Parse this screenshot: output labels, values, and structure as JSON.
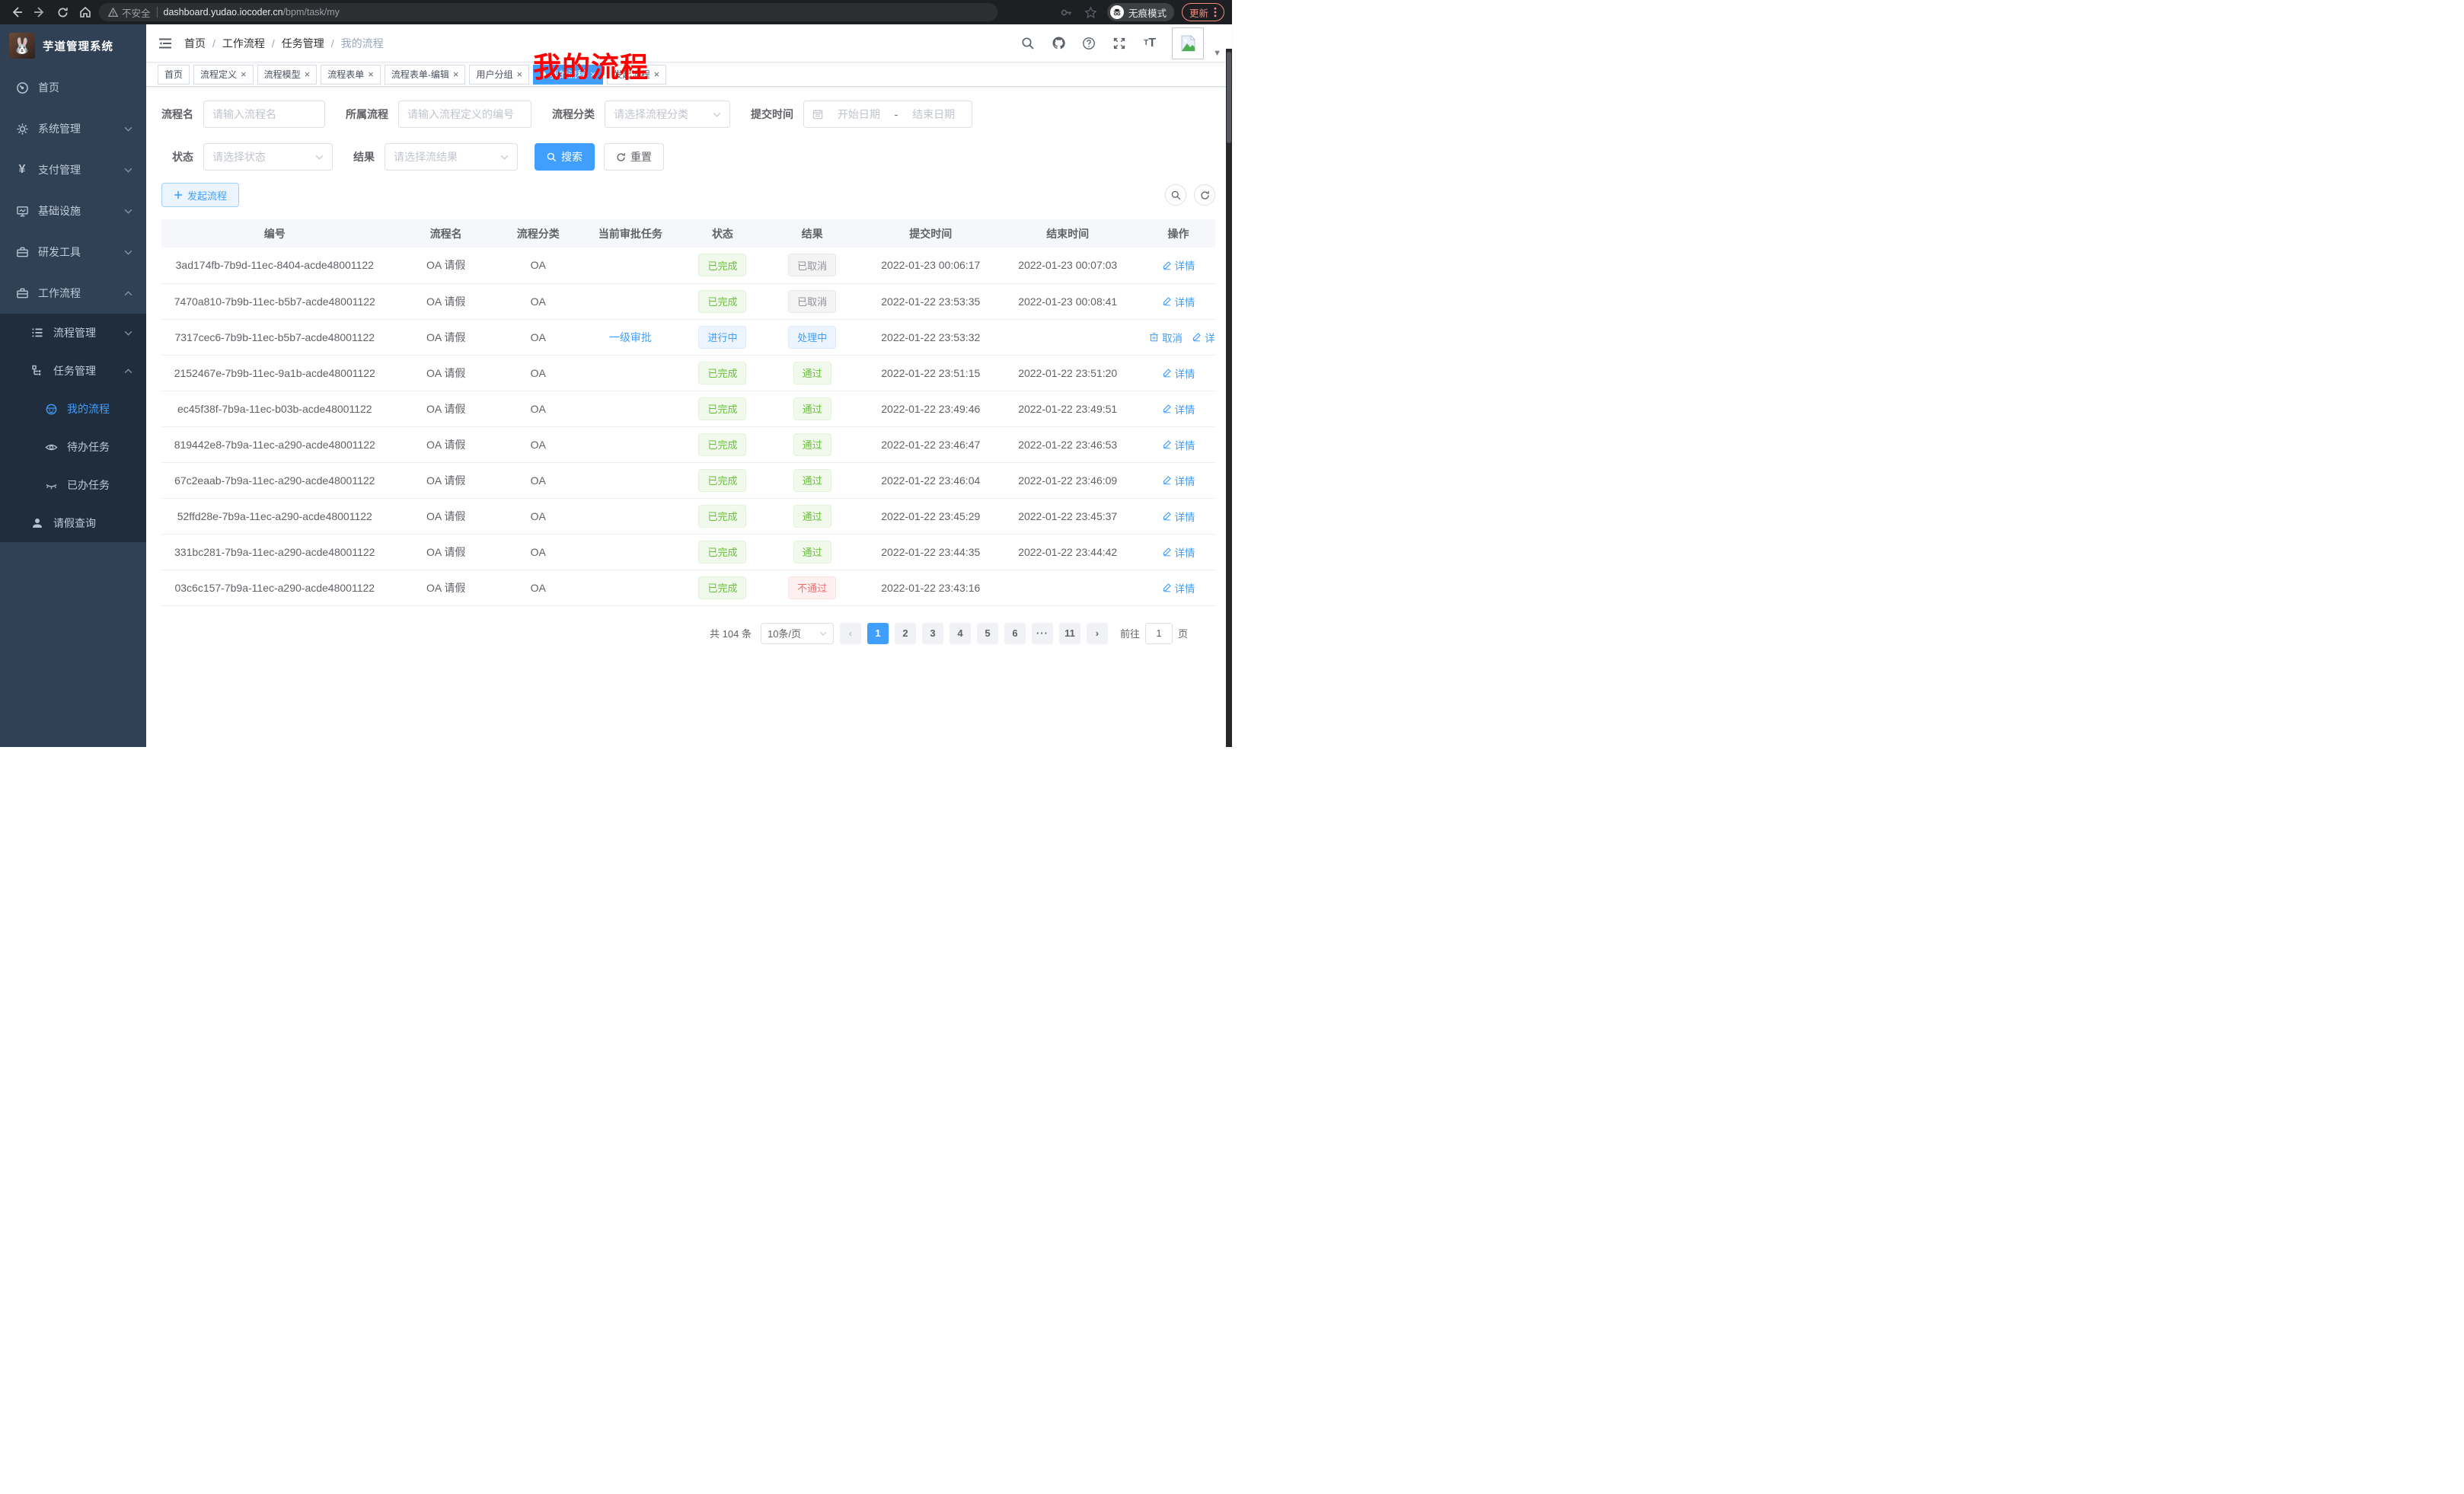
{
  "colors": {
    "accent": "#409eff",
    "success": "#67c23a",
    "danger": "#f56c6c",
    "info": "#909399",
    "annotation": "#ff0000",
    "update": "#f28b82"
  },
  "browser": {
    "security_warning": "不安全",
    "url_host": "dashboard.yudao.iocoder.cn",
    "url_path": "/bpm/task/my",
    "incognito_label": "无痕模式",
    "update_label": "更新"
  },
  "annotation": {
    "text": "我的流程"
  },
  "sidebar": {
    "title": "芋道管理系统",
    "home": "首页",
    "system": "系统管理",
    "payment": "支付管理",
    "infra": "基础设施",
    "devtools": "研发工具",
    "workflow": "工作流程",
    "process_mgmt": "流程管理",
    "task_mgmt": "任务管理",
    "my_process": "我的流程",
    "todo_tasks": "待办任务",
    "done_tasks": "已办任务",
    "leave_query": "请假查询"
  },
  "breadcrumb": {
    "items": [
      "首页",
      "工作流程",
      "任务管理",
      "我的流程"
    ]
  },
  "tabs": [
    {
      "label": "首页",
      "closable": false,
      "active": false
    },
    {
      "label": "流程定义",
      "closable": true,
      "active": false
    },
    {
      "label": "流程模型",
      "closable": true,
      "active": false
    },
    {
      "label": "流程表单",
      "closable": true,
      "active": false
    },
    {
      "label": "流程表单-编辑",
      "closable": true,
      "active": false
    },
    {
      "label": "用户分组",
      "closable": true,
      "active": false
    },
    {
      "label": "我的流程",
      "closable": true,
      "active": true
    },
    {
      "label": "发起流程",
      "closable": true,
      "active": false
    }
  ],
  "filters": {
    "name_label": "流程名",
    "name_placeholder": "请输入流程名",
    "definition_label": "所属流程",
    "definition_placeholder": "请输入流程定义的编号",
    "category_label": "流程分类",
    "category_placeholder": "请选择流程分类",
    "time_label": "提交时间",
    "date_start": "开始日期",
    "date_separator": "-",
    "date_end": "结束日期",
    "status_label": "状态",
    "status_placeholder": "请选择状态",
    "result_label": "结果",
    "result_placeholder": "请选择流结果",
    "search_button": "搜索",
    "reset_button": "重置"
  },
  "toolbar": {
    "create_button": "发起流程"
  },
  "table": {
    "columns": [
      "编号",
      "流程名",
      "流程分类",
      "当前审批任务",
      "状态",
      "结果",
      "提交时间",
      "结束时间",
      "操作"
    ],
    "rows": [
      {
        "id": "3ad174fb-7b9d-11ec-8404-acde48001122",
        "name": "OA 请假",
        "category": "OA",
        "task": "",
        "status": "已完成",
        "status_type": "success",
        "result": "已取消",
        "result_type": "info",
        "submit_time": "2022-01-23 00:06:17",
        "end_time": "2022-01-23 00:07:03",
        "actions": [
          {
            "icon": "edit",
            "label": "详情"
          }
        ]
      },
      {
        "id": "7470a810-7b9b-11ec-b5b7-acde48001122",
        "name": "OA 请假",
        "category": "OA",
        "task": "",
        "status": "已完成",
        "status_type": "success",
        "result": "已取消",
        "result_type": "info",
        "submit_time": "2022-01-22 23:53:35",
        "end_time": "2022-01-23 00:08:41",
        "actions": [
          {
            "icon": "edit",
            "label": "详情"
          }
        ]
      },
      {
        "id": "7317cec6-7b9b-11ec-b5b7-acde48001122",
        "name": "OA 请假",
        "category": "OA",
        "task": "一级审批",
        "status": "进行中",
        "status_type": "primary",
        "result": "处理中",
        "result_type": "primary",
        "submit_time": "2022-01-22 23:53:32",
        "end_time": "",
        "actions": [
          {
            "icon": "delete",
            "label": "取消"
          },
          {
            "icon": "edit",
            "label": "详情"
          }
        ]
      },
      {
        "id": "2152467e-7b9b-11ec-9a1b-acde48001122",
        "name": "OA 请假",
        "category": "OA",
        "task": "",
        "status": "已完成",
        "status_type": "success",
        "result": "通过",
        "result_type": "success",
        "submit_time": "2022-01-22 23:51:15",
        "end_time": "2022-01-22 23:51:20",
        "actions": [
          {
            "icon": "edit",
            "label": "详情"
          }
        ]
      },
      {
        "id": "ec45f38f-7b9a-11ec-b03b-acde48001122",
        "name": "OA 请假",
        "category": "OA",
        "task": "",
        "status": "已完成",
        "status_type": "success",
        "result": "通过",
        "result_type": "success",
        "submit_time": "2022-01-22 23:49:46",
        "end_time": "2022-01-22 23:49:51",
        "actions": [
          {
            "icon": "edit",
            "label": "详情"
          }
        ]
      },
      {
        "id": "819442e8-7b9a-11ec-a290-acde48001122",
        "name": "OA 请假",
        "category": "OA",
        "task": "",
        "status": "已完成",
        "status_type": "success",
        "result": "通过",
        "result_type": "success",
        "submit_time": "2022-01-22 23:46:47",
        "end_time": "2022-01-22 23:46:53",
        "actions": [
          {
            "icon": "edit",
            "label": "详情"
          }
        ]
      },
      {
        "id": "67c2eaab-7b9a-11ec-a290-acde48001122",
        "name": "OA 请假",
        "category": "OA",
        "task": "",
        "status": "已完成",
        "status_type": "success",
        "result": "通过",
        "result_type": "success",
        "submit_time": "2022-01-22 23:46:04",
        "end_time": "2022-01-22 23:46:09",
        "actions": [
          {
            "icon": "edit",
            "label": "详情"
          }
        ]
      },
      {
        "id": "52ffd28e-7b9a-11ec-a290-acde48001122",
        "name": "OA 请假",
        "category": "OA",
        "task": "",
        "status": "已完成",
        "status_type": "success",
        "result": "通过",
        "result_type": "success",
        "submit_time": "2022-01-22 23:45:29",
        "end_time": "2022-01-22 23:45:37",
        "actions": [
          {
            "icon": "edit",
            "label": "详情"
          }
        ]
      },
      {
        "id": "331bc281-7b9a-11ec-a290-acde48001122",
        "name": "OA 请假",
        "category": "OA",
        "task": "",
        "status": "已完成",
        "status_type": "success",
        "result": "通过",
        "result_type": "success",
        "submit_time": "2022-01-22 23:44:35",
        "end_time": "2022-01-22 23:44:42",
        "actions": [
          {
            "icon": "edit",
            "label": "详情"
          }
        ]
      },
      {
        "id": "03c6c157-7b9a-11ec-a290-acde48001122",
        "name": "OA 请假",
        "category": "OA",
        "task": "",
        "status": "已完成",
        "status_type": "success",
        "result": "不通过",
        "result_type": "danger",
        "submit_time": "2022-01-22 23:43:16",
        "end_time": "",
        "actions": [
          {
            "icon": "edit",
            "label": "详情"
          }
        ]
      }
    ]
  },
  "pagination": {
    "total": "共 104 条",
    "page_size": "10条/页",
    "pages": [
      "1",
      "2",
      "3",
      "4",
      "5",
      "6",
      "···",
      "11"
    ],
    "active_page": "1",
    "goto_label": "前往",
    "goto_value": "1",
    "goto_suffix": "页"
  }
}
